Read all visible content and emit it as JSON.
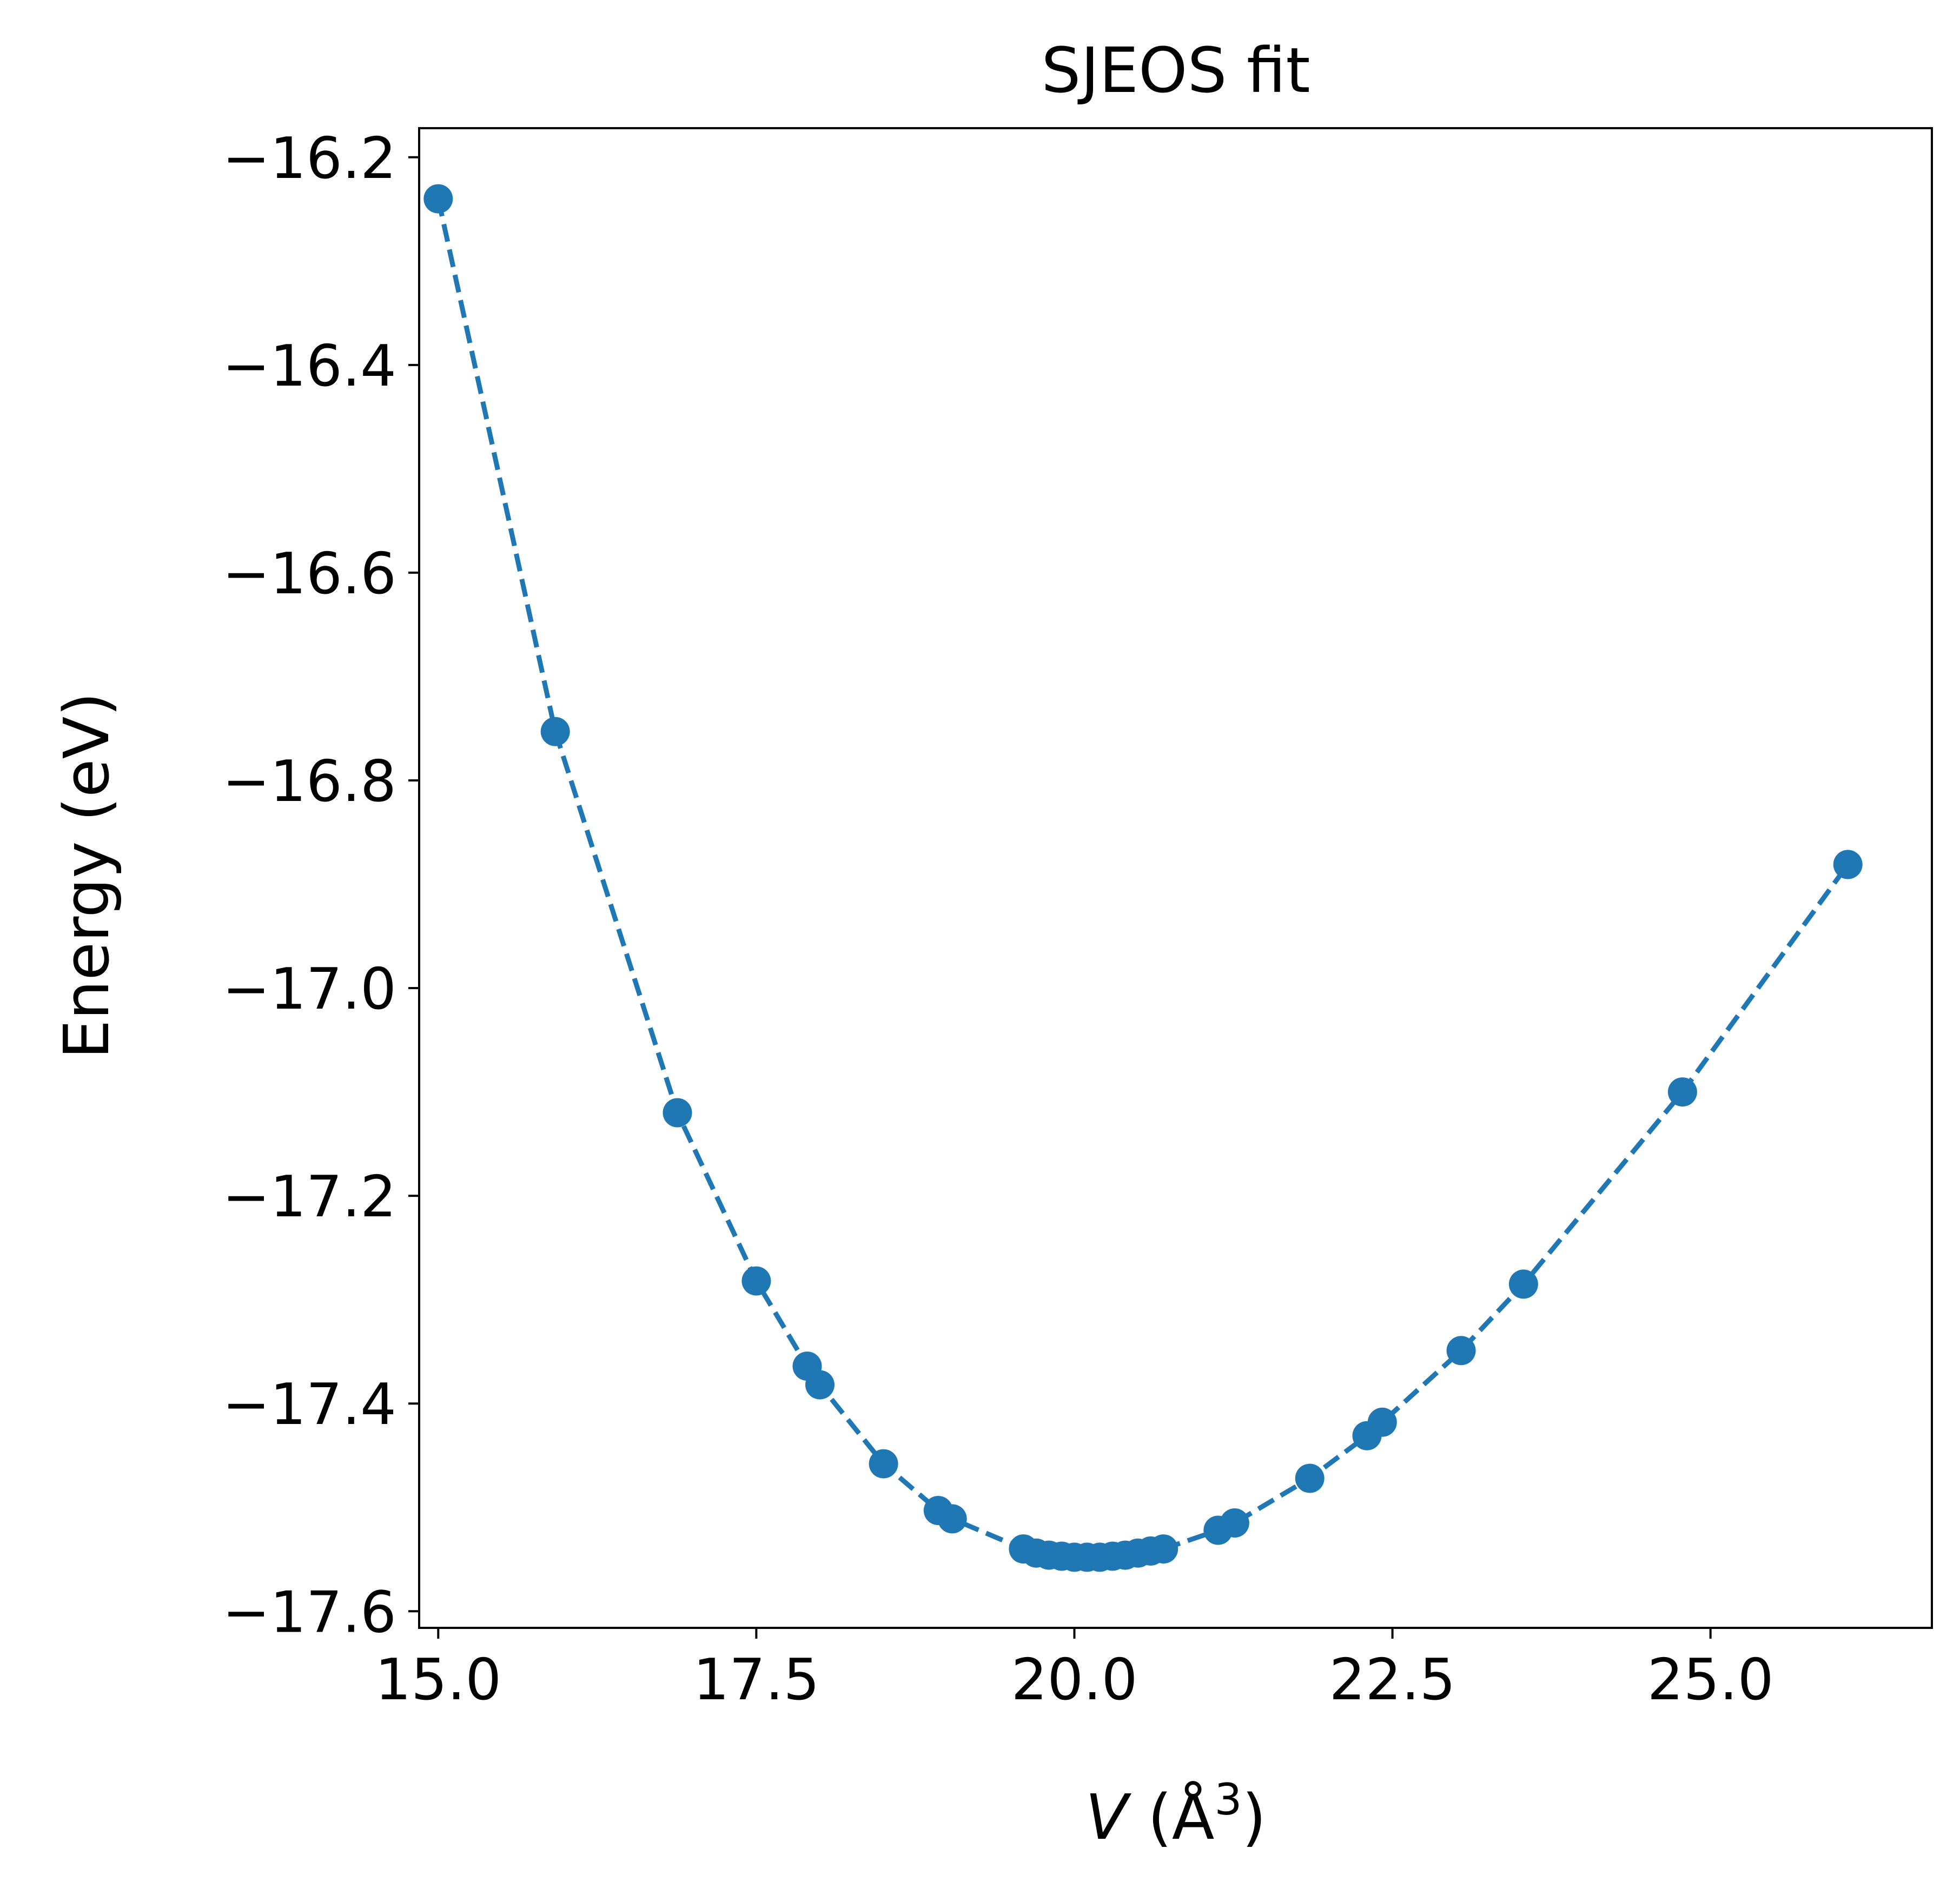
{
  "chart_data": {
    "type": "line",
    "title": "SJEOS fit",
    "xlabel": {
      "symbol": "V",
      "rest": " (Å",
      "sup": "3",
      "close": ")"
    },
    "ylabel": "Energy (eV)",
    "xlim": [
      14.85,
      26.74
    ],
    "ylim": [
      -17.616,
      -16.172
    ],
    "xticks": [
      15.0,
      17.5,
      20.0,
      22.5,
      25.0
    ],
    "xtick_labels": [
      "15.0",
      "17.5",
      "20.0",
      "22.5",
      "25.0"
    ],
    "yticks": [
      -16.2,
      -16.4,
      -16.6,
      -16.8,
      -17.0,
      -17.2,
      -17.4,
      -17.6
    ],
    "ytick_labels": [
      "−16.2",
      "−16.4",
      "−16.6",
      "−16.8",
      "−17.0",
      "−17.2",
      "−17.4",
      "−17.6"
    ],
    "grid": false,
    "legend": "none",
    "series": [
      {
        "color": "#1f77b4",
        "linestyle": "dashed",
        "marker": "circle",
        "points": [
          [
            15.0,
            -16.24
          ],
          [
            15.92,
            -16.753
          ],
          [
            16.88,
            -17.12
          ],
          [
            17.5,
            -17.282
          ],
          [
            17.9,
            -17.364
          ],
          [
            18.0,
            -17.382
          ],
          [
            18.5,
            -17.458
          ],
          [
            18.93,
            -17.503
          ],
          [
            19.04,
            -17.511
          ],
          [
            19.6,
            -17.54
          ],
          [
            19.7,
            -17.544
          ],
          [
            19.8,
            -17.546
          ],
          [
            19.9,
            -17.547
          ],
          [
            20.0,
            -17.548
          ],
          [
            20.1,
            -17.548
          ],
          [
            20.2,
            -17.548
          ],
          [
            20.3,
            -17.547
          ],
          [
            20.4,
            -17.546
          ],
          [
            20.5,
            -17.544
          ],
          [
            20.6,
            -17.542
          ],
          [
            20.7,
            -17.54
          ],
          [
            21.13,
            -17.522
          ],
          [
            21.26,
            -17.515
          ],
          [
            21.85,
            -17.472
          ],
          [
            22.3,
            -17.431
          ],
          [
            22.42,
            -17.418
          ],
          [
            23.04,
            -17.349
          ],
          [
            23.53,
            -17.285
          ],
          [
            24.78,
            -17.1
          ],
          [
            26.08,
            -16.881
          ]
        ]
      }
    ]
  }
}
